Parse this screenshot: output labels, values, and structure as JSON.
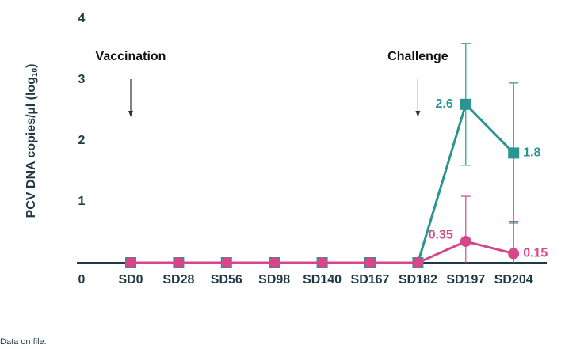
{
  "chart_data": {
    "type": "line",
    "ylabel": [
      "PCV DNA copies/µl (log",
      "10",
      ")"
    ],
    "categories": [
      "SD0",
      "SD28",
      "SD56",
      "SD98",
      "SD140",
      "SD167",
      "SD182",
      "SD197",
      "SD204"
    ],
    "ylim": [
      0,
      4
    ],
    "yticks": [
      0,
      1,
      2,
      3,
      4
    ],
    "series": [
      {
        "color": "#2a9490",
        "marker": "square",
        "values": [
          0,
          0,
          0,
          0,
          0,
          0,
          0,
          2.6,
          1.8
        ],
        "errors": [
          null,
          null,
          null,
          null,
          null,
          null,
          null,
          1.0,
          1.15
        ],
        "value_labels": [
          null,
          null,
          null,
          null,
          null,
          null,
          null,
          "2.6",
          "1.8"
        ]
      },
      {
        "color": "#d6468b",
        "marker": "circle",
        "values": [
          0,
          0,
          0,
          0,
          0,
          0,
          0,
          0.35,
          0.15
        ],
        "errors": [
          null,
          null,
          null,
          null,
          null,
          null,
          null,
          0.74,
          0.53
        ],
        "value_labels": [
          null,
          null,
          null,
          null,
          null,
          null,
          null,
          "0.35",
          "0.15"
        ]
      }
    ],
    "annotations": [
      {
        "text": "Vaccination",
        "category": 0
      },
      {
        "text": "Challenge",
        "category": 6
      }
    ],
    "footnote": "Data on file."
  }
}
